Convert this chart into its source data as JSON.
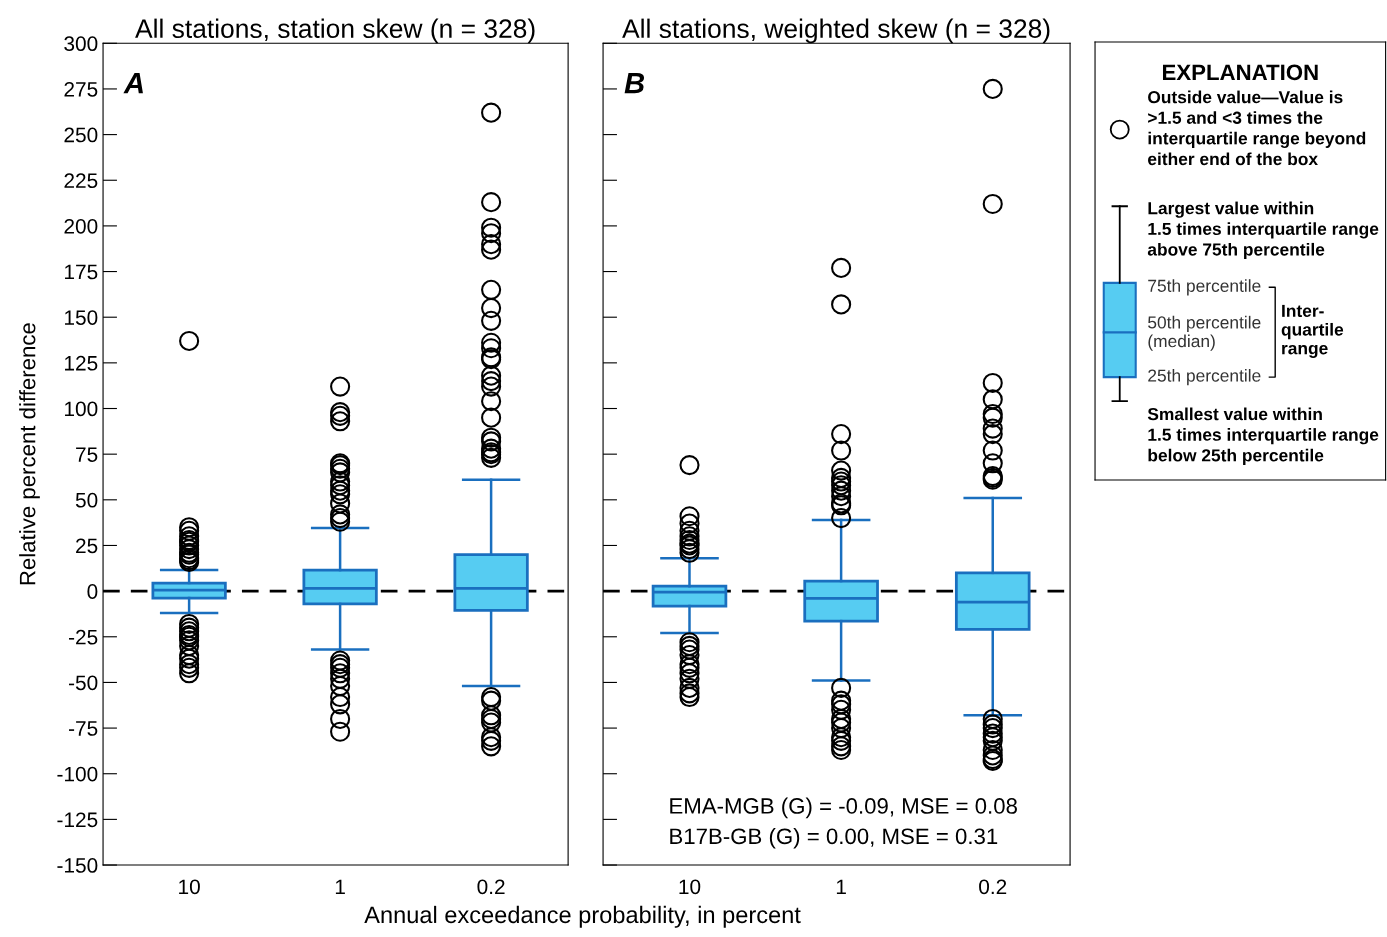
{
  "chart_data": [
    {
      "type": "box",
      "title": "All stations, station skew (n = 328)",
      "ylabel": "Relative percent difference",
      "xlabel": "Annual exceedance probability, in percent",
      "categories": [
        "10",
        "1",
        "0.2"
      ],
      "ylim": [
        -150,
        300
      ],
      "yticks": [
        -150,
        -125,
        -100,
        -75,
        -50,
        -25,
        0,
        25,
        50,
        75,
        100,
        125,
        150,
        175,
        200,
        225,
        250,
        275,
        300
      ],
      "ref_lines": [
        {
          "axis": "y",
          "value": 0,
          "line_style": "dashed",
          "color": "#000000"
        }
      ],
      "annotations": [
        "A"
      ],
      "series": [
        {
          "color": "#56ccf2",
          "boxes": [
            {
              "low": -12,
              "q1": -3.8,
              "median": 0.5,
              "q3": 4.4,
              "high": 11.5,
              "outliers": [
                137,
                35,
                33,
                30,
                28,
                27,
                25,
                23,
                21,
                20,
                18,
                17,
                16,
                -18,
                -20,
                -22,
                -24,
                -25,
                -27,
                -30,
                -35,
                -37,
                -40,
                -42,
                -45
              ]
            },
            {
              "low": -32,
              "q1": -7,
              "median": 1.5,
              "q3": 11.5,
              "high": 34.5,
              "outliers": [
                112,
                98,
                96,
                93,
                70,
                69,
                67,
                65,
                60,
                58,
                55,
                53,
                48,
                42,
                40,
                38,
                -38,
                -40,
                -42,
                -45,
                -48,
                -52,
                -58,
                -62,
                -70,
                -77
              ]
            },
            {
              "low": -52,
              "q1": -10.5,
              "median": 1.5,
              "q3": 20,
              "high": 61,
              "outliers": [
                262,
                213,
                199,
                196,
                190,
                187,
                165,
                155,
                148,
                136,
                133,
                128,
                127,
                118,
                115,
                112,
                104,
                95,
                84,
                82,
                78,
                76,
                75,
                73,
                -58,
                -60,
                -68,
                -70,
                -72,
                -80,
                -82,
                -85
              ]
            }
          ]
        }
      ]
    },
    {
      "type": "box",
      "title": "All stations, weighted skew (n = 328)",
      "tick_labels": "x",
      "categories": [
        "10",
        "1",
        "0.2"
      ],
      "ylim": [
        -150,
        300
      ],
      "yticks": [
        -150,
        -125,
        -100,
        -75,
        -50,
        -25,
        0,
        25,
        50,
        75,
        100,
        125,
        150,
        175,
        200,
        225,
        250,
        275,
        300
      ],
      "ref_lines": [
        {
          "axis": "y",
          "value": 0,
          "line_style": "dashed",
          "color": "#000000"
        }
      ],
      "annotations": [
        "B",
        "EMA-MGB (G) = -0.09, MSE = 0.08\nB17B-GB (G) = 0.00, MSE = 0.31"
      ],
      "series": [
        {
          "color": "#56ccf2",
          "boxes": [
            {
              "low": -23,
              "q1": -8.2,
              "median": -0.5,
              "q3": 2.7,
              "high": 18,
              "outliers": [
                69,
                41,
                37,
                33,
                30,
                28,
                26,
                25,
                23,
                21,
                -28,
                -30,
                -32,
                -35,
                -40,
                -42,
                -45,
                -48,
                -53,
                -56,
                -58
              ]
            },
            {
              "low": -49,
              "q1": -16.4,
              "median": -4,
              "q3": 5.5,
              "high": 39,
              "outliers": [
                177,
                157,
                86,
                77,
                66,
                62,
                60,
                58,
                55,
                52,
                48,
                47,
                40,
                -53,
                -60,
                -62,
                -65,
                -70,
                -72,
                -75,
                -80,
                -82,
                -85,
                -87
              ]
            },
            {
              "low": -68,
              "q1": -21,
              "median": -6,
              "q3": 10,
              "high": 51,
              "outliers": [
                275,
                212,
                114,
                105,
                97,
                95,
                89,
                86,
                77,
                70,
                63,
                62,
                61,
                -70,
                -73,
                -75,
                -78,
                -80,
                -82,
                -87,
                -90,
                -92,
                -93
              ]
            }
          ]
        }
      ]
    },
    {
      "type": "other",
      "title": "EXPLANATION",
      "annotations": [
        "Outside value—Value is\n>1.5 and <3 times the\ninterquartile range beyond\neither end of the box",
        "Largest value within\n1.5 times interquartile range\nabove 75th percentile",
        "75th percentile",
        "50th percentile\n(median)",
        "25th percentile",
        "Inter-\nquartile\nrange",
        "Smallest value within\n1.5 times interquartile range\nbelow 25th percentile"
      ]
    }
  ]
}
